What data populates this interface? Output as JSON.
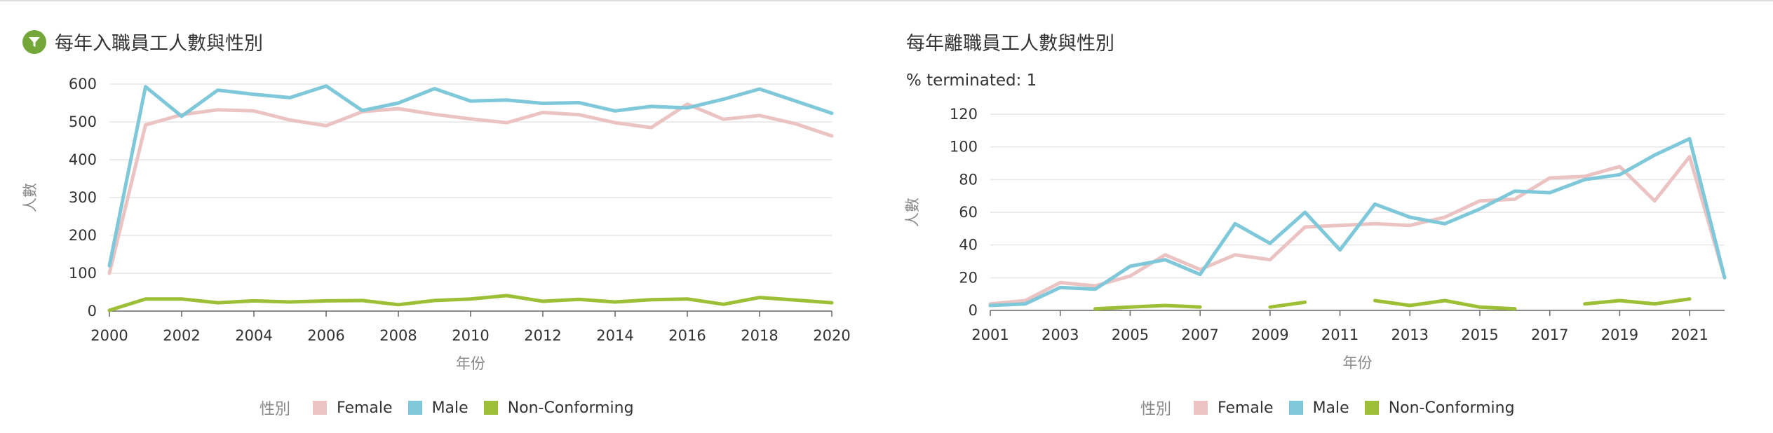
{
  "colors": {
    "female": "#ecc3c3",
    "male": "#7ec8da",
    "non_conforming": "#9dbf35",
    "accent": "#73a839",
    "grid": "#e6e6e6",
    "axis": "#666666"
  },
  "legend": {
    "title": "性別",
    "items": [
      {
        "label": "Female",
        "color": "#ecc3c3"
      },
      {
        "label": "Male",
        "color": "#7ec8da"
      },
      {
        "label": "Non-Conforming",
        "color": "#9dbf35"
      }
    ]
  },
  "left_panel": {
    "title": "每年入職員工人數與性別",
    "icon": "filter-icon"
  },
  "right_panel": {
    "title": "每年離職員工人數與性別",
    "subtitle": "% terminated: 1"
  },
  "chart_data": [
    {
      "type": "line",
      "title": "每年入職員工人數與性別",
      "xlabel": "年份",
      "ylabel": "人數",
      "xlim": [
        2000,
        2020
      ],
      "ylim": [
        0,
        600
      ],
      "yticks": [
        0,
        100,
        200,
        300,
        400,
        500,
        600
      ],
      "xticks": [
        2000,
        2002,
        2004,
        2006,
        2008,
        2010,
        2012,
        2014,
        2016,
        2018,
        2020
      ],
      "grid": true,
      "legend_position": "bottom",
      "x": [
        2000,
        2001,
        2002,
        2003,
        2004,
        2005,
        2006,
        2007,
        2008,
        2009,
        2010,
        2011,
        2012,
        2013,
        2014,
        2015,
        2016,
        2017,
        2018,
        2019,
        2020
      ],
      "series": [
        {
          "name": "Female",
          "color": "#ecc3c3",
          "values": [
            100,
            492,
            519,
            532,
            529,
            505,
            490,
            527,
            535,
            520,
            508,
            498,
            525,
            519,
            498,
            485,
            547,
            507,
            517,
            495,
            463
          ]
        },
        {
          "name": "Male",
          "color": "#7ec8da",
          "values": [
            120,
            593,
            515,
            584,
            573,
            564,
            595,
            530,
            550,
            588,
            555,
            558,
            549,
            551,
            529,
            541,
            537,
            560,
            587,
            555,
            523
          ]
        },
        {
          "name": "Non-Conforming",
          "color": "#9dbf35",
          "values": [
            2,
            32,
            32,
            22,
            27,
            24,
            27,
            28,
            17,
            28,
            32,
            41,
            26,
            31,
            24,
            30,
            32,
            18,
            36,
            29,
            22
          ]
        }
      ]
    },
    {
      "type": "line",
      "title": "每年離職員工人數與性別",
      "subtitle": "% terminated: 1",
      "xlabel": "年份",
      "ylabel": "人數",
      "xlim": [
        2001,
        2022
      ],
      "ylim": [
        0,
        120
      ],
      "yticks": [
        0,
        20,
        40,
        60,
        80,
        100,
        120
      ],
      "xticks": [
        2001,
        2003,
        2005,
        2007,
        2009,
        2011,
        2013,
        2015,
        2017,
        2019,
        2021
      ],
      "grid": true,
      "legend_position": "bottom",
      "x": [
        2001,
        2002,
        2003,
        2004,
        2005,
        2006,
        2007,
        2008,
        2009,
        2010,
        2011,
        2012,
        2013,
        2014,
        2015,
        2016,
        2017,
        2018,
        2019,
        2020,
        2021,
        2022
      ],
      "series": [
        {
          "name": "Female",
          "color": "#ecc3c3",
          "values": [
            4,
            6,
            17,
            15,
            21,
            34,
            25,
            34,
            31,
            51,
            52,
            53,
            52,
            57,
            67,
            68,
            81,
            82,
            88,
            67,
            94,
            20
          ]
        },
        {
          "name": "Male",
          "color": "#7ec8da",
          "values": [
            3,
            4,
            14,
            13,
            27,
            31,
            22,
            53,
            41,
            60,
            37,
            65,
            57,
            53,
            62,
            73,
            72,
            80,
            83,
            95,
            105,
            20
          ]
        },
        {
          "name": "Non-Conforming",
          "color": "#9dbf35",
          "values": [
            null,
            null,
            null,
            1,
            2,
            3,
            2,
            null,
            2,
            5,
            null,
            6,
            3,
            6,
            2,
            1,
            null,
            4,
            6,
            4,
            7,
            null
          ]
        }
      ]
    }
  ]
}
